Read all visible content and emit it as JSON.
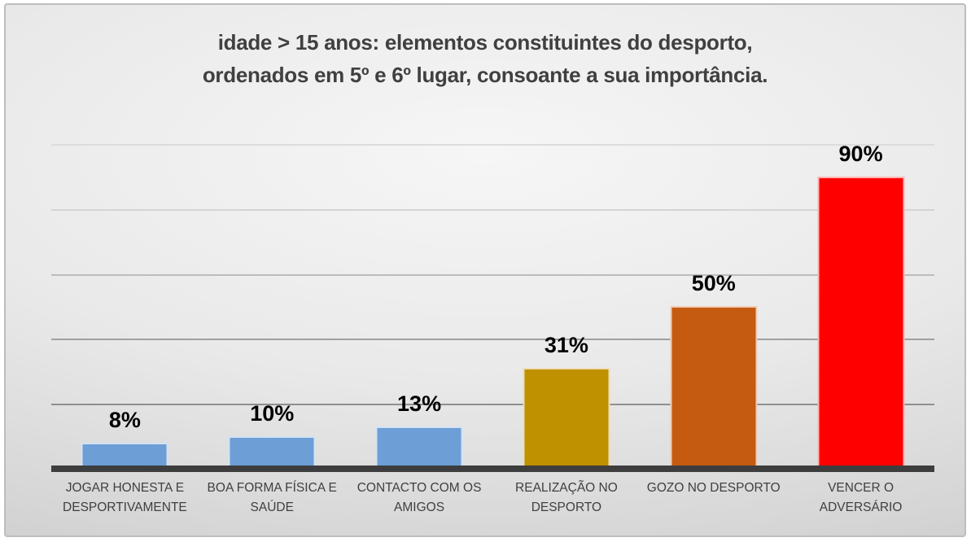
{
  "title": {
    "line1": "idade > 15 anos: elementos constituintes do desporto,",
    "line2": "ordenados em 5º e 6º lugar, consoante a sua importância."
  },
  "chart_data": {
    "type": "bar",
    "title": "idade > 15 anos: elementos constituintes do desporto, ordenados em 5º e 6º lugar, consoante a sua importância.",
    "categories": [
      "JOGAR HONESTA E DESPORTIVAMENTE",
      "BOA FORMA FÍSICA E SAÚDE",
      "CONTACTO COM OS AMIGOS",
      "REALIZAÇÃO NO DESPORTO",
      "GOZO NO DESPORTO",
      "VENCER O ADVERSÁRIO"
    ],
    "values": [
      8,
      10,
      13,
      31,
      50,
      90
    ],
    "value_labels": [
      "8%",
      "10%",
      "13%",
      "31%",
      "50%",
      "90%"
    ],
    "bar_colors": [
      "#6d9ed6",
      "#6d9ed6",
      "#6d9ed6",
      "#bf9000",
      "#c55a11",
      "#ff0000"
    ],
    "xlabel": "",
    "ylabel": "",
    "ylim": [
      0,
      100
    ],
    "grid": "horizontal",
    "gridline_interval_percent": 20,
    "gridline_colors_top_to_bottom": [
      "#dcdcdc",
      "#d4d4d4",
      "#bcbcbc",
      "#a0a0a0",
      "#8f8f8f"
    ],
    "axis_line_color": "#3d3d3d",
    "legend": "none",
    "title_color": "#404040",
    "value_label_color": "#000000",
    "category_label_color": "#404040",
    "background": "gray gradient slide"
  }
}
